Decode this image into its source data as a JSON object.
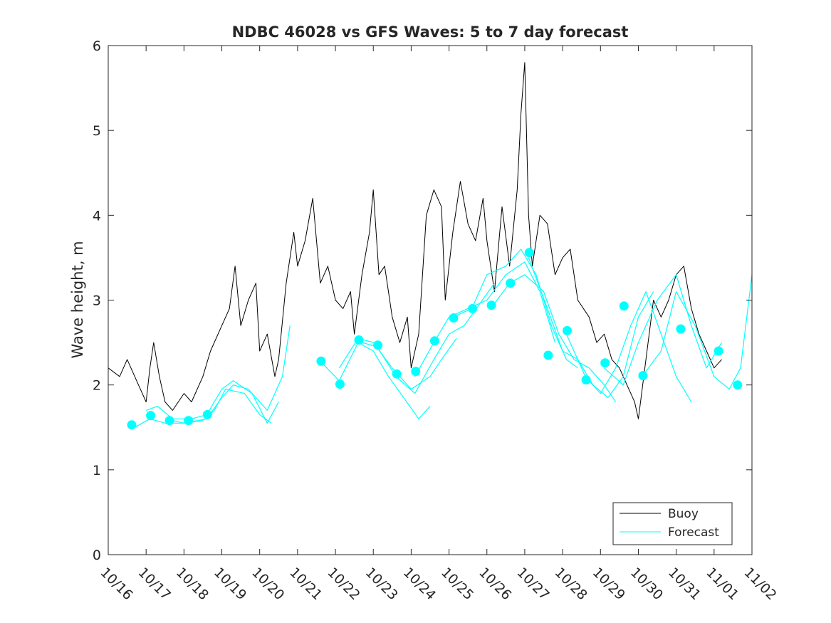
{
  "chart_data": {
    "type": "line",
    "title": "NDBC 46028 vs GFS Waves: 5 to 7 day forecast",
    "xlabel": "",
    "ylabel": "Wave height, m",
    "ylim": [
      0,
      6
    ],
    "yticks": [
      "0",
      "1",
      "2",
      "3",
      "4",
      "5",
      "6"
    ],
    "xlim": [
      0,
      17
    ],
    "xticks": [
      "10/16",
      "10/17",
      "10/18",
      "10/19",
      "10/20",
      "10/21",
      "10/22",
      "10/23",
      "10/24",
      "10/25",
      "10/26",
      "10/27",
      "10/28",
      "10/29",
      "10/30",
      "10/31",
      "11/01",
      "11/02"
    ],
    "legend": {
      "position": "bottom-right",
      "entries": [
        "Buoy",
        "Forecast"
      ]
    },
    "colors": {
      "buoy": "#000000",
      "forecast": "#00ffff",
      "axes": "#262626"
    },
    "buoy": {
      "name": "Buoy",
      "x": [
        0,
        0.3,
        0.5,
        0.8,
        1.0,
        1.1,
        1.2,
        1.35,
        1.5,
        1.7,
        2.0,
        2.2,
        2.5,
        2.7,
        3.0,
        3.2,
        3.35,
        3.5,
        3.7,
        3.9,
        4.0,
        4.2,
        4.4,
        4.5,
        4.7,
        4.9,
        5.0,
        5.2,
        5.4,
        5.6,
        5.8,
        6.0,
        6.2,
        6.4,
        6.5,
        6.7,
        6.9,
        7.0,
        7.15,
        7.3,
        7.5,
        7.7,
        7.9,
        8.0,
        8.2,
        8.4,
        8.6,
        8.8,
        8.9,
        9.1,
        9.3,
        9.5,
        9.7,
        9.9,
        10.0,
        10.2,
        10.4,
        10.6,
        10.8,
        10.9,
        11.0,
        11.1,
        11.2,
        11.4,
        11.6,
        11.8,
        12.0,
        12.2,
        12.4,
        12.7,
        12.9,
        13.1,
        13.3,
        13.5,
        13.7,
        13.9,
        14.0,
        14.2,
        14.4,
        14.6,
        14.8,
        15.0,
        15.2,
        15.4,
        15.6,
        15.8,
        16.0,
        16.2
      ],
      "values": [
        2.2,
        2.1,
        2.3,
        2.0,
        1.8,
        2.2,
        2.5,
        2.1,
        1.8,
        1.7,
        1.9,
        1.8,
        2.1,
        2.4,
        2.7,
        2.9,
        3.4,
        2.7,
        3.0,
        3.2,
        2.4,
        2.6,
        2.1,
        2.3,
        3.2,
        3.8,
        3.4,
        3.7,
        4.2,
        3.2,
        3.4,
        3.0,
        2.9,
        3.1,
        2.6,
        3.3,
        3.8,
        4.3,
        3.3,
        3.4,
        2.8,
        2.5,
        2.8,
        2.2,
        2.6,
        4.0,
        4.3,
        4.1,
        3.0,
        3.8,
        4.4,
        3.9,
        3.7,
        4.2,
        3.7,
        3.1,
        4.1,
        3.4,
        4.3,
        5.2,
        5.8,
        4.0,
        3.4,
        4.0,
        3.9,
        3.3,
        3.5,
        3.6,
        3.0,
        2.8,
        2.5,
        2.6,
        2.3,
        2.2,
        2.0,
        1.8,
        1.6,
        2.3,
        3.0,
        2.8,
        3.0,
        3.3,
        3.4,
        2.9,
        2.6,
        2.4,
        2.2,
        2.3
      ]
    },
    "forecast_markers": {
      "name": "Forecast",
      "x": [
        0.62,
        1.12,
        1.62,
        2.12,
        2.62,
        5.62,
        6.12,
        6.62,
        7.12,
        7.62,
        8.12,
        8.62,
        9.12,
        9.62,
        10.12,
        10.62,
        11.12,
        11.62,
        12.12,
        12.62,
        13.12,
        13.62,
        14.12,
        15.12,
        16.12,
        16.62
      ],
      "values": [
        1.53,
        1.64,
        1.58,
        1.58,
        1.65,
        2.28,
        2.01,
        2.53,
        2.47,
        2.13,
        2.16,
        2.52,
        2.79,
        2.9,
        2.94,
        3.2,
        3.56,
        2.35,
        2.64,
        2.06,
        2.26,
        2.93,
        2.11,
        2.66,
        2.4,
        2.0
      ]
    },
    "forecast_runs": [
      {
        "x": [
          0.7,
          1.1,
          1.5,
          2.0,
          2.5,
          2.8,
          3.1,
          3.6,
          4.0,
          4.3
        ],
        "values": [
          1.5,
          1.6,
          1.55,
          1.55,
          1.58,
          1.7,
          1.95,
          1.9,
          1.65,
          1.55
        ]
      },
      {
        "x": [
          1.0,
          1.3,
          1.7,
          2.2,
          2.6,
          3.0,
          3.3,
          3.8,
          4.2,
          4.5
        ],
        "values": [
          1.7,
          1.75,
          1.6,
          1.6,
          1.65,
          1.95,
          2.05,
          1.9,
          1.55,
          1.8
        ]
      },
      {
        "x": [
          1.5,
          2.0,
          2.6,
          3.0,
          3.3,
          3.7,
          4.2,
          4.6,
          4.8
        ],
        "values": [
          1.6,
          1.55,
          1.6,
          1.85,
          2.0,
          1.95,
          1.7,
          2.1,
          2.7
        ]
      },
      {
        "x": [
          5.6,
          6.1,
          6.6,
          7.0,
          7.4,
          7.8,
          8.2,
          8.5
        ],
        "values": [
          2.28,
          2.05,
          2.5,
          2.4,
          2.1,
          1.85,
          1.6,
          1.75
        ]
      },
      {
        "x": [
          6.1,
          6.6,
          7.0,
          7.5,
          8.0,
          8.5,
          8.8,
          9.2
        ],
        "values": [
          2.2,
          2.55,
          2.5,
          2.2,
          1.95,
          2.1,
          2.3,
          2.55
        ]
      },
      {
        "x": [
          6.7,
          7.1,
          7.6,
          8.1,
          8.6,
          9.0,
          9.4,
          9.8,
          10.2
        ],
        "values": [
          2.5,
          2.45,
          2.1,
          1.9,
          2.3,
          2.6,
          2.7,
          2.95,
          3.2
        ]
      },
      {
        "x": [
          8.1,
          8.6,
          9.0,
          9.5,
          10.0,
          10.5,
          11.0,
          11.4,
          11.8
        ],
        "values": [
          2.1,
          2.5,
          2.8,
          2.9,
          3.0,
          3.3,
          3.45,
          3.1,
          2.5
        ]
      },
      {
        "x": [
          9.1,
          9.6,
          10.0,
          10.5,
          10.9,
          11.3,
          11.7,
          12.1,
          12.4
        ],
        "values": [
          2.8,
          2.9,
          3.3,
          3.4,
          3.6,
          3.3,
          2.7,
          2.3,
          2.2
        ]
      },
      {
        "x": [
          10.1,
          10.6,
          11.0,
          11.5,
          11.9,
          12.3,
          12.7,
          13.1,
          13.4
        ],
        "values": [
          2.9,
          3.2,
          3.3,
          3.1,
          2.6,
          2.3,
          2.2,
          2.0,
          1.8
        ]
      },
      {
        "x": [
          11.1,
          11.6,
          12.0,
          12.4,
          12.8,
          13.2,
          13.6,
          14.0,
          14.4
        ],
        "values": [
          3.5,
          2.9,
          2.4,
          2.3,
          2.0,
          1.85,
          2.1,
          2.8,
          3.1
        ]
      },
      {
        "x": [
          12.1,
          12.6,
          13.0,
          13.4,
          13.8,
          14.2,
          14.6,
          15.0,
          15.4
        ],
        "values": [
          2.6,
          2.1,
          1.9,
          2.2,
          2.7,
          3.1,
          2.6,
          2.1,
          1.8
        ]
      },
      {
        "x": [
          13.1,
          13.6,
          14.0,
          14.5,
          15.0,
          15.4,
          15.8,
          16.2
        ],
        "values": [
          2.2,
          2.0,
          2.5,
          3.0,
          3.3,
          2.7,
          2.2,
          2.5
        ]
      },
      {
        "x": [
          14.1,
          14.6,
          15.0,
          15.5,
          16.0,
          16.4,
          16.7,
          17.0
        ],
        "values": [
          2.1,
          2.4,
          3.1,
          2.7,
          2.1,
          1.95,
          2.2,
          3.3
        ]
      }
    ]
  }
}
